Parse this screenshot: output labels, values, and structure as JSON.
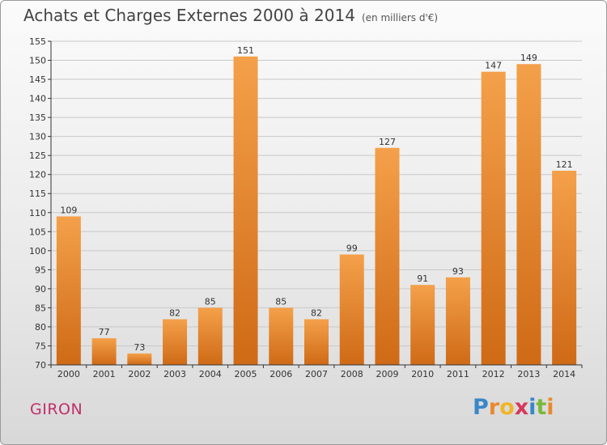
{
  "header": {
    "title": "Achats et Charges Externes 2000 à 2014",
    "subtitle": "(en milliers d'€)"
  },
  "footer": {
    "place": "GIRON",
    "logo": "Proxiti",
    "logo_colors": [
      "#3a87c8",
      "#e9892e",
      "#f0b52a",
      "#d8375a",
      "#3a87c8",
      "#7ab83c",
      "#e9892e"
    ]
  },
  "colors": {
    "bar_light": "#f4a04a",
    "bar_dark": "#cf6a16",
    "grid": "#c8c8c8",
    "axis": "#333333"
  },
  "chart_data": {
    "type": "bar",
    "title": "Achats et Charges Externes 2000 à 2014",
    "subtitle": "(en milliers d'€)",
    "xlabel": "",
    "ylabel": "",
    "ylim": [
      70,
      155
    ],
    "ytick_step": 5,
    "grid": true,
    "categories": [
      "2000",
      "2001",
      "2002",
      "2003",
      "2004",
      "2005",
      "2006",
      "2007",
      "2008",
      "2009",
      "2010",
      "2011",
      "2012",
      "2013",
      "2014"
    ],
    "values": [
      109,
      77,
      73,
      82,
      85,
      151,
      85,
      82,
      99,
      127,
      91,
      93,
      147,
      149,
      121
    ]
  }
}
